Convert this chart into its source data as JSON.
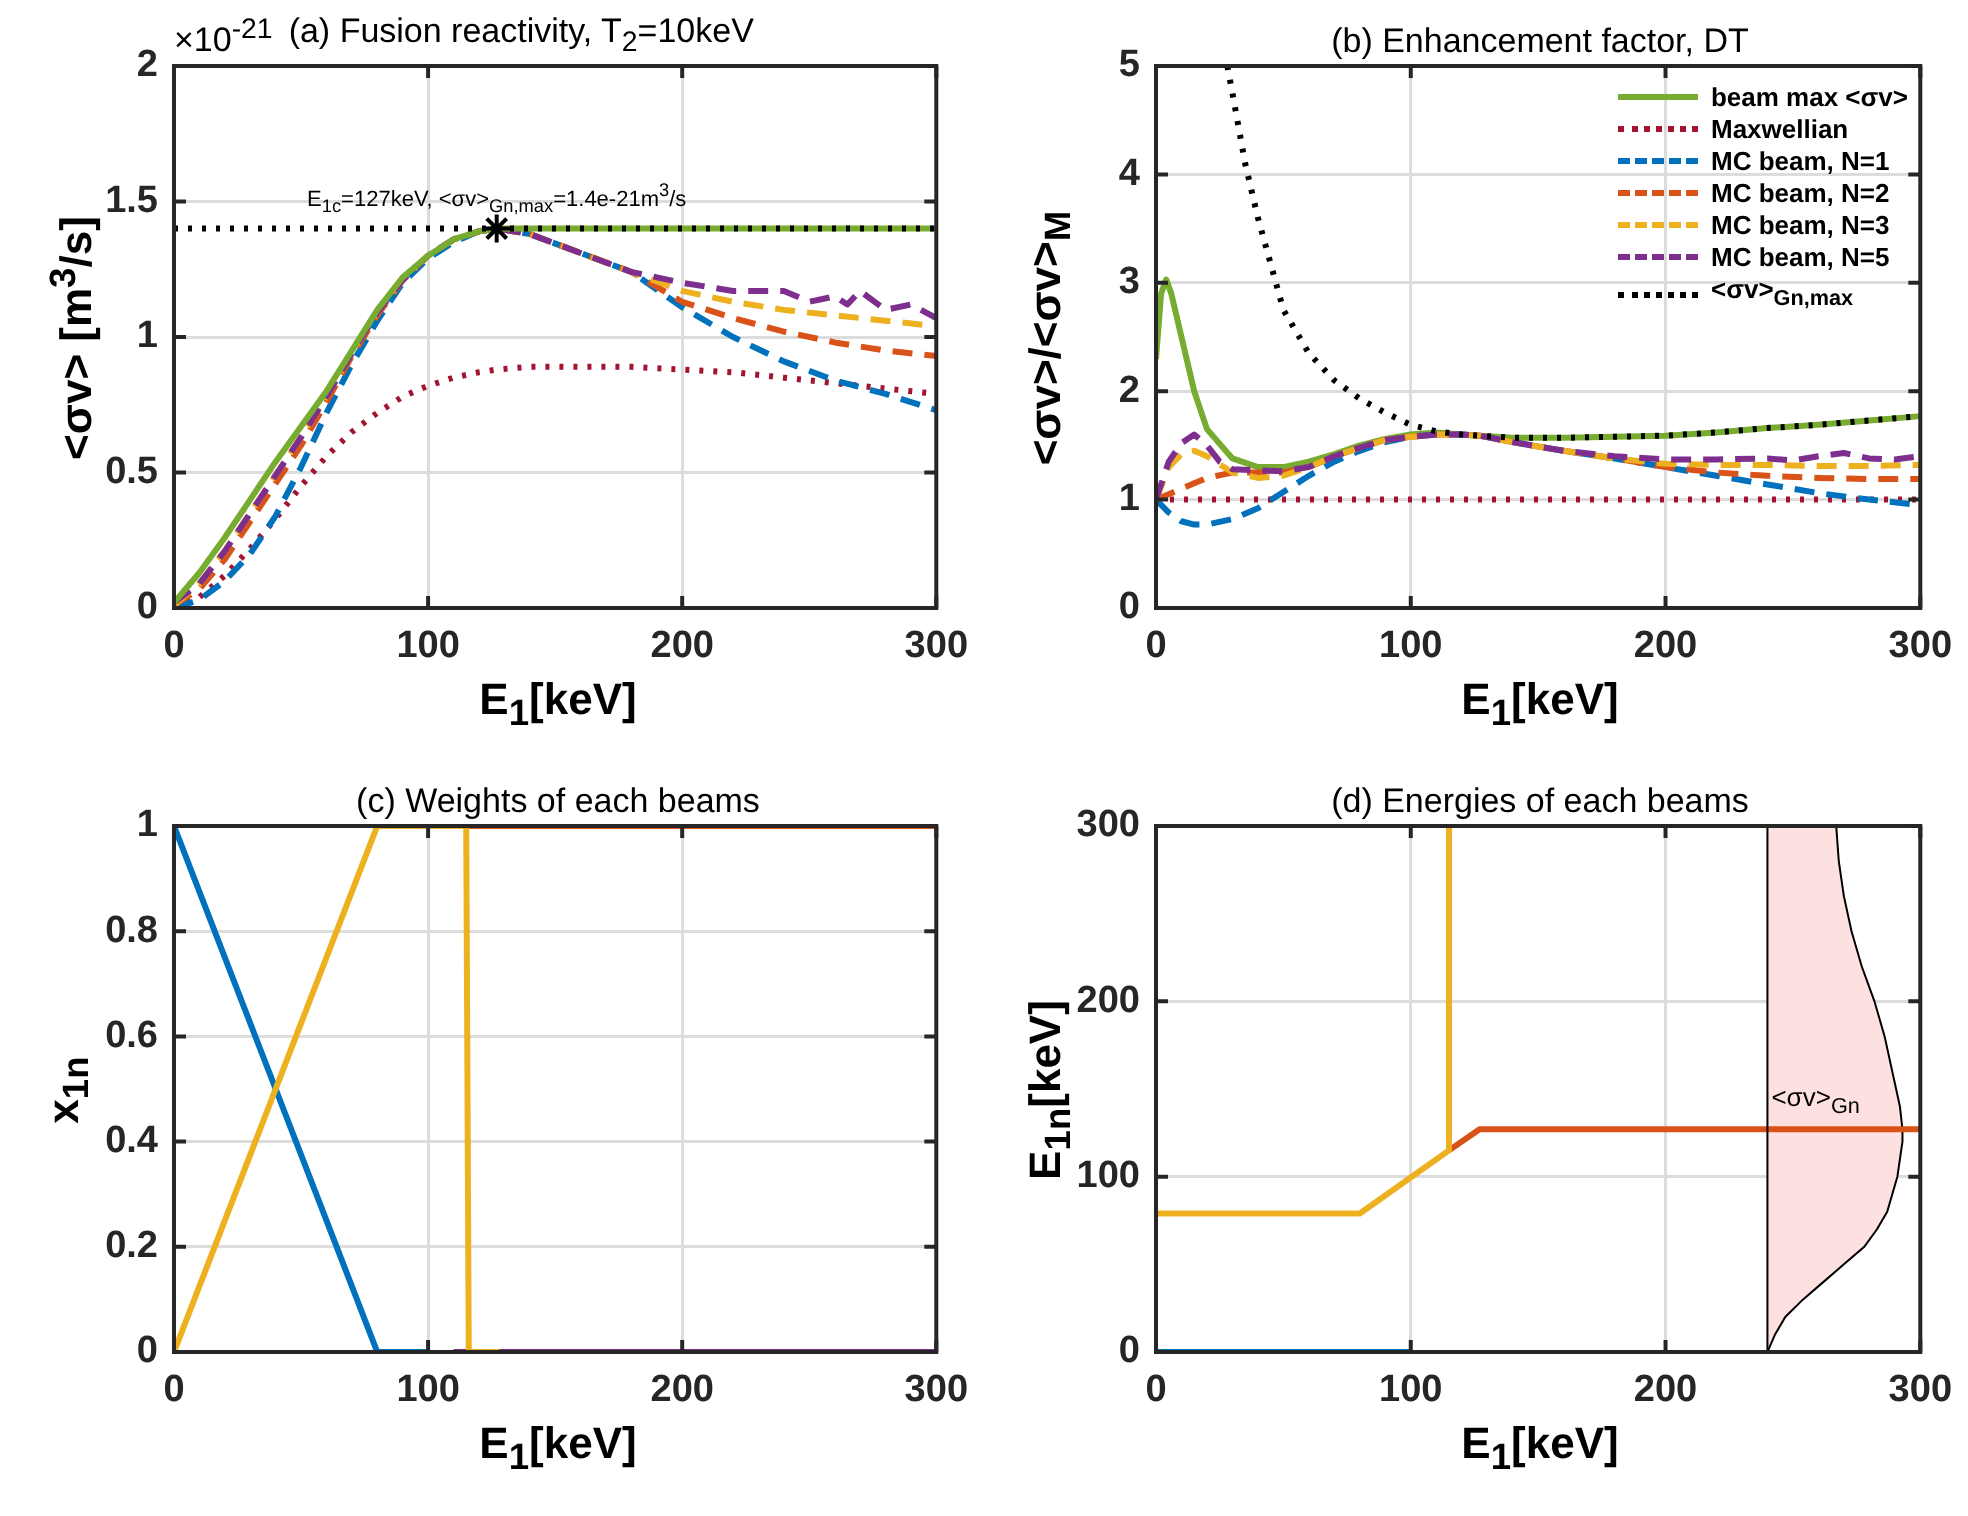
{
  "chart_data": [
    {
      "type": "line",
      "title": "(a) Fusion reactivity, T$_{2}$=10keV",
      "xlabel": "E$_{1}$[keV]",
      "ylabel": "<σv> [m$^{3}$/s]",
      "annotations": [
        "×10$^{-21}$",
        {
          "text": "E$_{1c}$=127keV, <σv>$_{Gn,max}$=1.4e-21m$^{3}$/s",
          "x": 127,
          "y": 1.4
        }
      ],
      "x": [
        0,
        10,
        20,
        30,
        40,
        50,
        60,
        70,
        80,
        90,
        100,
        110,
        120,
        127,
        140,
        160,
        180,
        200,
        220,
        240,
        260,
        280,
        300
      ],
      "xlim": [
        0,
        300
      ],
      "xticks": [
        0,
        100,
        200,
        300
      ],
      "ylim": [
        0,
        2
      ],
      "yticks": [
        0,
        0.5,
        1,
        1.5,
        2
      ],
      "grid": true,
      "ref_lines": [
        {
          "axis": "y",
          "value": 1.4,
          "color": "#000000",
          "line_style": "dotted"
        }
      ],
      "series": [
        {
          "color": "#a2142f",
          "line_style": "dotted",
          "values": [
            0,
            0.04,
            0.12,
            0.22,
            0.33,
            0.45,
            0.56,
            0.65,
            0.72,
            0.78,
            0.82,
            0.85,
            0.87,
            0.88,
            0.89,
            0.89,
            0.89,
            0.88,
            0.87,
            0.85,
            0.83,
            0.81,
            0.79
          ]
        },
        {
          "color": "#0072bd",
          "line_style": "dashed",
          "values": [
            0,
            0.03,
            0.1,
            0.2,
            0.34,
            0.52,
            0.72,
            0.9,
            1.06,
            1.2,
            1.29,
            1.35,
            1.39,
            1.4,
            1.38,
            1.31,
            1.24,
            1.11,
            1.0,
            0.91,
            0.84,
            0.79,
            0.73
          ]
        },
        {
          "color": "#d95319",
          "line_style": "dashed",
          "values": [
            0.01,
            0.07,
            0.18,
            0.32,
            0.46,
            0.6,
            0.76,
            0.93,
            1.08,
            1.21,
            1.3,
            1.36,
            1.39,
            1.4,
            1.38,
            1.31,
            1.24,
            1.13,
            1.07,
            1.02,
            0.98,
            0.95,
            0.93
          ]
        },
        {
          "color": "#edb120",
          "line_style": "dashed",
          "values": [
            0.01,
            0.09,
            0.21,
            0.35,
            0.49,
            0.63,
            0.78,
            0.94,
            1.09,
            1.21,
            1.3,
            1.36,
            1.39,
            1.4,
            1.38,
            1.31,
            1.24,
            1.17,
            1.13,
            1.1,
            1.08,
            1.06,
            1.04
          ]
        },
        {
          "color": "#7e2f8e",
          "line_style": "dashed",
          "x": [
            0,
            10,
            20,
            30,
            40,
            50,
            60,
            70,
            80,
            90,
            100,
            110,
            120,
            127,
            140,
            160,
            180,
            200,
            220,
            240,
            250,
            260,
            265,
            270,
            280,
            290,
            300
          ],
          "values": [
            0.02,
            0.09,
            0.21,
            0.35,
            0.49,
            0.63,
            0.78,
            0.94,
            1.09,
            1.21,
            1.3,
            1.36,
            1.39,
            1.4,
            1.38,
            1.31,
            1.24,
            1.2,
            1.17,
            1.17,
            1.13,
            1.15,
            1.12,
            1.17,
            1.1,
            1.12,
            1.07
          ]
        },
        {
          "color": "#77ac30",
          "line_style": "solid",
          "values": [
            0.02,
            0.13,
            0.26,
            0.4,
            0.54,
            0.67,
            0.8,
            0.95,
            1.1,
            1.22,
            1.3,
            1.36,
            1.39,
            1.4,
            1.4,
            1.4,
            1.4,
            1.4,
            1.4,
            1.4,
            1.4,
            1.4,
            1.4
          ]
        },
        {
          "type": "scatter",
          "color": "#000000",
          "marker": "cross",
          "x": [
            127
          ],
          "values": [
            1.4
          ]
        }
      ]
    },
    {
      "type": "line",
      "title": "(b) Enhancement factor, DT",
      "xlabel": "E$_{1}$[keV]",
      "ylabel": "<σv>/<σv>$_{M}$",
      "xlim": [
        0,
        300
      ],
      "xticks": [
        0,
        100,
        200,
        300
      ],
      "ylim": [
        0,
        5
      ],
      "yticks": [
        0,
        1,
        2,
        3,
        4,
        5
      ],
      "grid": true,
      "legend": "top right",
      "series": [
        {
          "name": "beam max <σv>",
          "color": "#77ac30",
          "line_style": "solid",
          "x": [
            0,
            2,
            4,
            6,
            10,
            15,
            20,
            30,
            40,
            50,
            60,
            70,
            80,
            90,
            100,
            110,
            120,
            127,
            140,
            160,
            180,
            200,
            220,
            240,
            260,
            280,
            300
          ],
          "values": [
            2.3,
            2.9,
            3.03,
            2.9,
            2.5,
            2.0,
            1.65,
            1.38,
            1.3,
            1.3,
            1.35,
            1.42,
            1.5,
            1.56,
            1.6,
            1.62,
            1.6,
            1.59,
            1.57,
            1.57,
            1.58,
            1.59,
            1.62,
            1.66,
            1.69,
            1.73,
            1.77
          ]
        },
        {
          "name": "Maxwellian",
          "color": "#a2142f",
          "line_style": "dotted",
          "x": [
            0,
            300
          ],
          "values": [
            1,
            1
          ]
        },
        {
          "name": "MC beam, N=1",
          "color": "#0072bd",
          "line_style": "dashed",
          "x": [
            0,
            5,
            10,
            15,
            20,
            30,
            40,
            50,
            60,
            70,
            80,
            90,
            100,
            110,
            120,
            127,
            140,
            160,
            180,
            200,
            220,
            240,
            260,
            280,
            300
          ],
          "values": [
            1.0,
            0.88,
            0.8,
            0.77,
            0.77,
            0.82,
            0.92,
            1.07,
            1.22,
            1.35,
            1.45,
            1.53,
            1.58,
            1.6,
            1.6,
            1.59,
            1.53,
            1.45,
            1.38,
            1.3,
            1.22,
            1.14,
            1.06,
            1.0,
            0.95
          ]
        },
        {
          "name": "MC beam, N=2",
          "color": "#d95319",
          "line_style": "dashed",
          "x": [
            0,
            5,
            10,
            15,
            20,
            30,
            40,
            50,
            60,
            70,
            80,
            90,
            100,
            110,
            120,
            127,
            140,
            160,
            180,
            200,
            220,
            240,
            260,
            280,
            300
          ],
          "values": [
            1.0,
            1.05,
            1.1,
            1.15,
            1.2,
            1.25,
            1.25,
            1.25,
            1.3,
            1.4,
            1.48,
            1.55,
            1.58,
            1.6,
            1.6,
            1.59,
            1.53,
            1.45,
            1.38,
            1.3,
            1.25,
            1.22,
            1.2,
            1.19,
            1.19
          ]
        },
        {
          "name": "MC beam, N=3",
          "color": "#edb120",
          "line_style": "dashed",
          "x": [
            0,
            5,
            10,
            15,
            20,
            30,
            40,
            50,
            60,
            70,
            80,
            90,
            100,
            110,
            120,
            127,
            140,
            160,
            180,
            200,
            220,
            240,
            260,
            280,
            300
          ],
          "values": [
            1.0,
            1.3,
            1.42,
            1.45,
            1.4,
            1.25,
            1.2,
            1.22,
            1.3,
            1.4,
            1.48,
            1.55,
            1.58,
            1.6,
            1.6,
            1.59,
            1.53,
            1.45,
            1.38,
            1.33,
            1.32,
            1.32,
            1.31,
            1.31,
            1.32
          ]
        },
        {
          "name": "MC beam, N=5",
          "color": "#7e2f8e",
          "line_style": "dashed",
          "x": [
            0,
            5,
            10,
            15,
            20,
            25,
            30,
            40,
            50,
            60,
            70,
            80,
            90,
            100,
            110,
            120,
            127,
            140,
            160,
            180,
            200,
            220,
            240,
            250,
            260,
            270,
            280,
            290,
            300
          ],
          "values": [
            1.0,
            1.35,
            1.52,
            1.6,
            1.5,
            1.35,
            1.28,
            1.27,
            1.26,
            1.3,
            1.4,
            1.48,
            1.55,
            1.58,
            1.6,
            1.6,
            1.59,
            1.53,
            1.45,
            1.4,
            1.37,
            1.37,
            1.38,
            1.36,
            1.4,
            1.43,
            1.38,
            1.37,
            1.4
          ]
        },
        {
          "name": "<σv>$_{Gn,max}$",
          "color": "#000000",
          "line_style": "dotted",
          "x": [
            28,
            30,
            35,
            40,
            50,
            60,
            70,
            80,
            90,
            100,
            110,
            120,
            127,
            140,
            160,
            180,
            200,
            220,
            240,
            260,
            280,
            300
          ],
          "values": [
            5,
            4.75,
            4.1,
            3.6,
            2.75,
            2.35,
            2.1,
            1.93,
            1.8,
            1.69,
            1.63,
            1.6,
            1.59,
            1.57,
            1.57,
            1.58,
            1.59,
            1.62,
            1.66,
            1.69,
            1.73,
            1.77
          ]
        }
      ]
    },
    {
      "type": "line",
      "title": "(c) Weights of each beams",
      "xlabel": "E$_{1}$[keV]",
      "ylabel": "x$_{1n}$",
      "xlim": [
        0,
        300
      ],
      "xticks": [
        0,
        100,
        200,
        300
      ],
      "ylim": [
        0,
        1
      ],
      "yticks": [
        0,
        0.2,
        0.4,
        0.6,
        0.8,
        1
      ],
      "grid": true,
      "series": [
        {
          "color": "#7e2f8e",
          "x": [
            110,
            300
          ],
          "values": [
            0,
            0
          ]
        },
        {
          "color": "#d95319",
          "x": [
            115,
            300
          ],
          "values": [
            1,
            1
          ]
        },
        {
          "color": "#0072bd",
          "x": [
            0,
            80,
            100
          ],
          "values": [
            1,
            0,
            0
          ]
        },
        {
          "color": "#edb120",
          "x": [
            0,
            80,
            115,
            116,
            128
          ],
          "values": [
            0,
            1,
            1,
            0,
            0
          ]
        }
      ]
    },
    {
      "type": "line",
      "title": "(d) Energies of each beams",
      "xlabel": "E$_{1}$[keV]",
      "ylabel": "E$_{1n}$[keV]",
      "xlim": [
        0,
        300
      ],
      "xticks": [
        0,
        100,
        200,
        300
      ],
      "ylim": [
        0,
        300
      ],
      "yticks": [
        0,
        100,
        200,
        300
      ],
      "grid": true,
      "ref_lines": [
        {
          "axis": "x",
          "value": 240,
          "color": "#000000",
          "line_style": "solid"
        }
      ],
      "series": [
        {
          "type": "area",
          "name": "<σv>$_{Gn}$",
          "color": "#fde0e0",
          "x": [
            240,
            243,
            247,
            254,
            262,
            270,
            278,
            283,
            287,
            291,
            293,
            293,
            292,
            289,
            286,
            282,
            277,
            273,
            270,
            268,
            267,
            240
          ],
          "values": [
            0,
            10,
            20,
            30,
            40,
            50,
            60,
            70,
            80,
            100,
            120,
            127,
            140,
            160,
            180,
            200,
            220,
            240,
            260,
            280,
            300,
            300
          ]
        },
        {
          "color": "#0072bd",
          "x": [
            0,
            100
          ],
          "values": [
            0,
            0
          ]
        },
        {
          "color": "#d95319",
          "x": [
            115,
            127,
            300
          ],
          "values": [
            115,
            127,
            127
          ]
        },
        {
          "color": "#edb120",
          "x": [
            0,
            80,
            115,
            115
          ],
          "values": [
            79,
            79,
            115,
            300
          ]
        }
      ]
    }
  ]
}
